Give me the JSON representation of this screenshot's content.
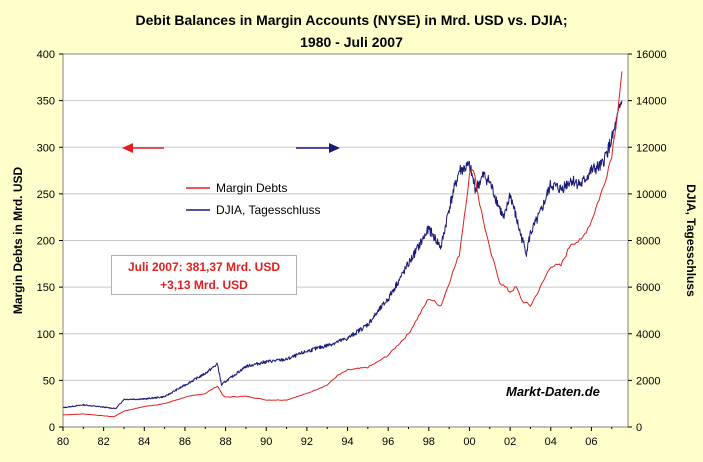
{
  "chart_data": {
    "type": "line",
    "title": "Debit Balances in Margin Accounts (NYSE) in Mrd. USD vs. DJIA;",
    "subtitle": "1980 - Juli 2007",
    "ylabel_left": "Margin Debts in Mrd. USD",
    "ylabel_right": "DJIA, Tagesschluss",
    "x_ticks": [
      "80",
      "82",
      "84",
      "86",
      "88",
      "90",
      "92",
      "94",
      "96",
      "98",
      "00",
      "02",
      "04",
      "06"
    ],
    "xlim": [
      1980,
      2007.8
    ],
    "ylim_left": [
      0,
      400
    ],
    "ylim_right": [
      0,
      16000
    ],
    "y_ticks_left": [
      "0",
      "50",
      "100",
      "150",
      "200",
      "250",
      "300",
      "350",
      "400"
    ],
    "y_ticks_right": [
      "0",
      "2000",
      "4000",
      "6000",
      "8000",
      "10000",
      "12000",
      "14000",
      "16000"
    ],
    "grid": true,
    "legend_position": "center-left",
    "series": [
      {
        "name": "Margin Debts",
        "color": "#e02020",
        "axis": "left",
        "points": [
          [
            1980,
            13
          ],
          [
            1981,
            14
          ],
          [
            1982,
            12
          ],
          [
            1982.5,
            11
          ],
          [
            1983,
            17
          ],
          [
            1984,
            22
          ],
          [
            1985,
            25
          ],
          [
            1986,
            32
          ],
          [
            1987,
            36
          ],
          [
            1987.6,
            44
          ],
          [
            1987.9,
            33
          ],
          [
            1988,
            32
          ],
          [
            1989,
            33
          ],
          [
            1990,
            29
          ],
          [
            1991,
            29
          ],
          [
            1992,
            36
          ],
          [
            1993,
            45
          ],
          [
            1993.5,
            55
          ],
          [
            1994,
            61
          ],
          [
            1995,
            64
          ],
          [
            1995.5,
            70
          ],
          [
            1996,
            77
          ],
          [
            1997,
            100
          ],
          [
            1998,
            138
          ],
          [
            1998.6,
            130
          ],
          [
            1999,
            155
          ],
          [
            1999.5,
            185
          ],
          [
            2000,
            270
          ],
          [
            2000.2,
            278
          ],
          [
            2000.5,
            240
          ],
          [
            2001,
            190
          ],
          [
            2001.5,
            155
          ],
          [
            2002,
            145
          ],
          [
            2002.3,
            150
          ],
          [
            2002.6,
            135
          ],
          [
            2003,
            130
          ],
          [
            2003.5,
            150
          ],
          [
            2004,
            173
          ],
          [
            2004.5,
            173
          ],
          [
            2005,
            197
          ],
          [
            2005.5,
            200
          ],
          [
            2006,
            221
          ],
          [
            2006.3,
            240
          ],
          [
            2006.6,
            258
          ],
          [
            2007,
            292
          ],
          [
            2007.3,
            340
          ],
          [
            2007.5,
            381.37
          ]
        ]
      },
      {
        "name": "DJIA, Tagesschluss",
        "color": "#1a1a78",
        "axis": "right",
        "points": [
          [
            1980,
            830
          ],
          [
            1981,
            950
          ],
          [
            1982,
            850
          ],
          [
            1982.6,
            790
          ],
          [
            1983,
            1190
          ],
          [
            1984,
            1200
          ],
          [
            1985,
            1300
          ],
          [
            1986,
            1800
          ],
          [
            1987,
            2300
          ],
          [
            1987.6,
            2700
          ],
          [
            1987.8,
            1800
          ],
          [
            1988,
            1950
          ],
          [
            1989,
            2600
          ],
          [
            1990,
            2800
          ],
          [
            1991,
            2900
          ],
          [
            1992,
            3250
          ],
          [
            1993,
            3500
          ],
          [
            1994,
            3800
          ],
          [
            1995,
            4400
          ],
          [
            1996,
            5500
          ],
          [
            1997,
            7000
          ],
          [
            1998,
            8500
          ],
          [
            1998.6,
            7700
          ],
          [
            1999,
            9400
          ],
          [
            1999.5,
            11000
          ],
          [
            2000,
            11200
          ],
          [
            2000.3,
            10200
          ],
          [
            2000.7,
            10800
          ],
          [
            2001,
            10500
          ],
          [
            2001.7,
            8900
          ],
          [
            2002,
            10000
          ],
          [
            2002.5,
            8300
          ],
          [
            2002.8,
            7500
          ],
          [
            2003,
            8300
          ],
          [
            2003.5,
            9200
          ],
          [
            2004,
            10400
          ],
          [
            2004.5,
            10200
          ],
          [
            2005,
            10600
          ],
          [
            2005.5,
            10400
          ],
          [
            2006,
            11000
          ],
          [
            2006.5,
            11200
          ],
          [
            2007,
            12300
          ],
          [
            2007.3,
            13300
          ],
          [
            2007.5,
            14000
          ]
        ]
      }
    ],
    "legend": [
      "Margin Debts",
      "DJIA, Tagesschluss"
    ],
    "annotation": [
      "Juli 2007: 381,37 Mrd. USD",
      "+3,13 Mrd. USD"
    ],
    "watermark": "Markt-Daten.de"
  },
  "colors": {
    "background": "#ffffcc",
    "plot_bg": "#ffffff",
    "grid": "#c8c8c8"
  }
}
